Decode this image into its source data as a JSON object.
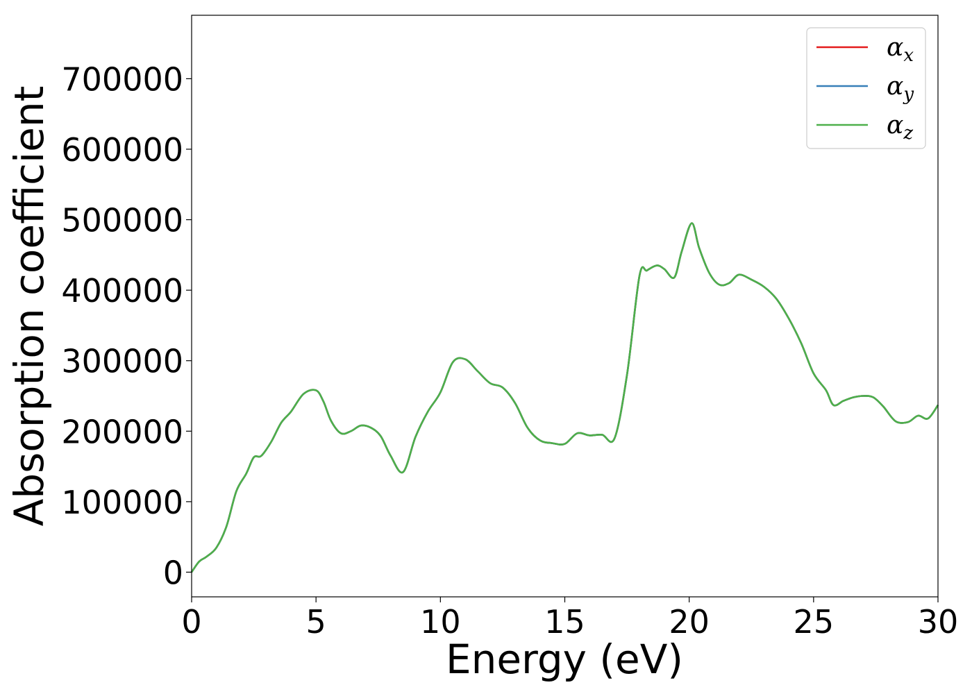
{
  "chart_data": {
    "type": "line",
    "title": "",
    "xlabel": "Energy (eV)",
    "ylabel": "Absorption coefficient",
    "xlim": [
      0,
      30
    ],
    "ylim": [
      -35000,
      790000
    ],
    "xticks": [
      "0",
      "5",
      "10",
      "15",
      "20",
      "25",
      "30"
    ],
    "yticks": [
      "0",
      "100000",
      "200000",
      "300000",
      "400000",
      "500000",
      "600000",
      "700000"
    ],
    "grid": false,
    "legend_position": "top-right",
    "x": [
      0,
      0.3,
      0.6,
      1.0,
      1.4,
      1.8,
      2.2,
      2.5,
      2.8,
      3.2,
      3.6,
      4.0,
      4.5,
      5.0,
      5.3,
      5.6,
      6.0,
      6.4,
      6.8,
      7.2,
      7.6,
      8.0,
      8.5,
      9.0,
      9.5,
      10.0,
      10.5,
      11.0,
      11.5,
      12.0,
      12.5,
      13.0,
      13.5,
      14.0,
      14.5,
      15.0,
      15.5,
      16.0,
      16.5,
      17.0,
      17.5,
      18.0,
      18.3,
      18.7,
      19.0,
      19.4,
      19.7,
      20.1,
      20.4,
      20.8,
      21.2,
      21.6,
      22.0,
      22.5,
      23.0,
      23.5,
      24.0,
      24.5,
      25.0,
      25.5,
      25.8,
      26.2,
      26.6,
      27.0,
      27.4,
      27.8,
      28.3,
      28.8,
      29.2,
      29.6,
      30.0
    ],
    "series": [
      {
        "name": "α_x",
        "name_main": "α",
        "name_sub": "x",
        "color": "#e41a1c",
        "values": [
          0,
          15000,
          22000,
          35000,
          65000,
          115000,
          140000,
          163000,
          165000,
          185000,
          212000,
          228000,
          253000,
          258000,
          242000,
          215000,
          197000,
          200000,
          208000,
          205000,
          193000,
          165000,
          142000,
          192000,
          228000,
          255000,
          298000,
          302000,
          285000,
          268000,
          262000,
          240000,
          205000,
          187000,
          183000,
          182000,
          197000,
          194000,
          195000,
          190000,
          280000,
          420000,
          428000,
          435000,
          430000,
          418000,
          455000,
          495000,
          460000,
          425000,
          408000,
          410000,
          422000,
          415000,
          405000,
          388000,
          360000,
          325000,
          282000,
          258000,
          237000,
          243000,
          248000,
          250000,
          248000,
          235000,
          214000,
          213000,
          222000,
          218000,
          237000
        ]
      },
      {
        "name": "α_y",
        "name_main": "α",
        "name_sub": "y",
        "color": "#377eb8",
        "values": [
          0,
          15000,
          22000,
          35000,
          65000,
          115000,
          140000,
          163000,
          165000,
          185000,
          212000,
          228000,
          253000,
          258000,
          242000,
          215000,
          197000,
          200000,
          208000,
          205000,
          193000,
          165000,
          142000,
          192000,
          228000,
          255000,
          298000,
          302000,
          285000,
          268000,
          262000,
          240000,
          205000,
          187000,
          183000,
          182000,
          197000,
          194000,
          195000,
          190000,
          280000,
          420000,
          428000,
          435000,
          430000,
          418000,
          455000,
          495000,
          460000,
          425000,
          408000,
          410000,
          422000,
          415000,
          405000,
          388000,
          360000,
          325000,
          282000,
          258000,
          237000,
          243000,
          248000,
          250000,
          248000,
          235000,
          214000,
          213000,
          222000,
          218000,
          237000
        ]
      },
      {
        "name": "α_z",
        "name_main": "α",
        "name_sub": "z",
        "color": "#4daf4a",
        "values": [
          0,
          15000,
          22000,
          35000,
          65000,
          115000,
          140000,
          163000,
          165000,
          185000,
          212000,
          228000,
          253000,
          258000,
          242000,
          215000,
          197000,
          200000,
          208000,
          205000,
          193000,
          165000,
          142000,
          192000,
          228000,
          255000,
          298000,
          302000,
          285000,
          268000,
          262000,
          240000,
          205000,
          187000,
          183000,
          182000,
          197000,
          194000,
          195000,
          190000,
          280000,
          420000,
          428000,
          435000,
          430000,
          418000,
          455000,
          495000,
          460000,
          425000,
          408000,
          410000,
          422000,
          415000,
          405000,
          388000,
          360000,
          325000,
          282000,
          258000,
          237000,
          243000,
          248000,
          250000,
          248000,
          235000,
          214000,
          213000,
          222000,
          218000,
          237000
        ]
      }
    ]
  }
}
